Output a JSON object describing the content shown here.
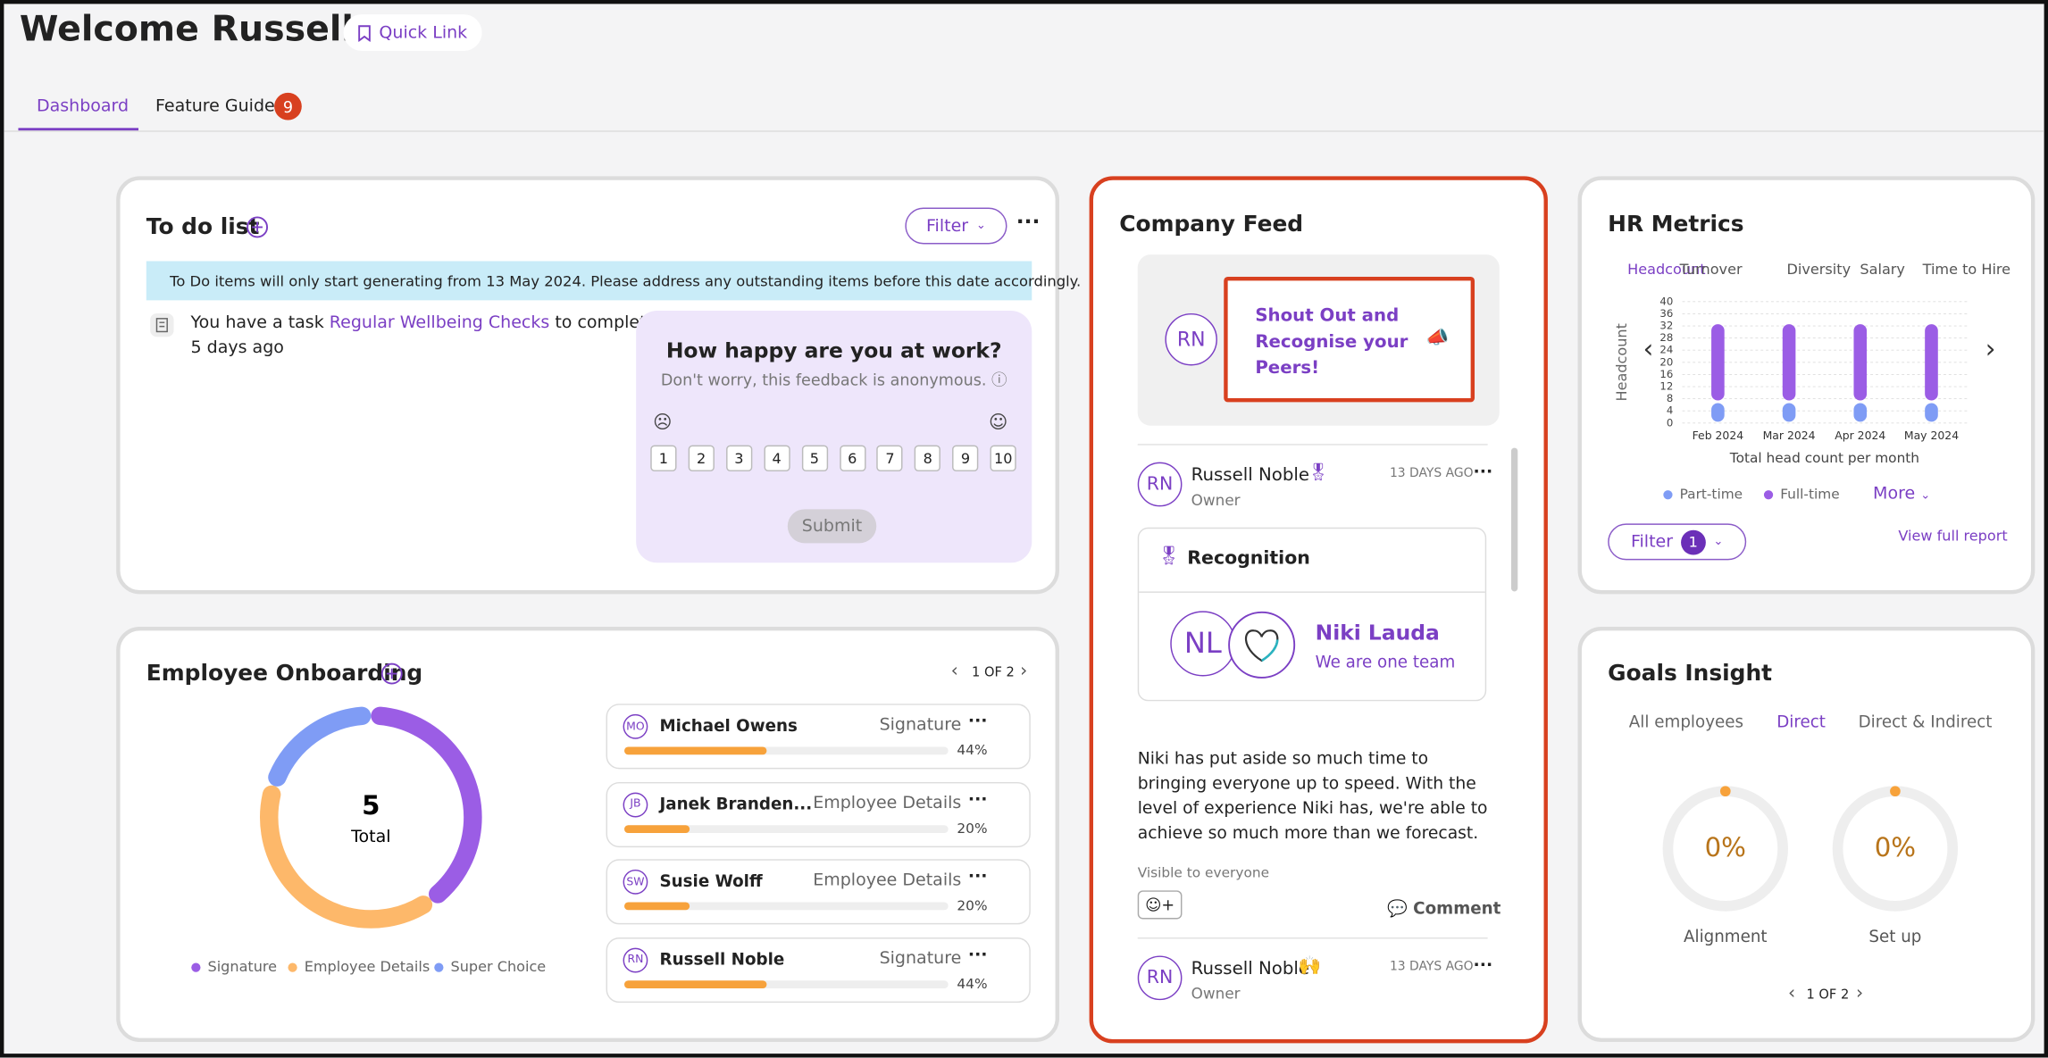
{
  "header": {
    "title": "Welcome Russell",
    "quick_link": "Quick Link",
    "tabs": [
      "Dashboard",
      "Feature Guides"
    ],
    "feature_guides_badge": 9
  },
  "todo": {
    "title": "To do list",
    "filter": "Filter",
    "notice": "To Do items will only start generating from 13 May 2024. Please address any outstanding items before this date accordingly.",
    "task_prefix": "You have a task",
    "task_link": "Regular Wellbeing Checks",
    "task_suffix": "to complete",
    "task_time": "5 days ago",
    "survey": {
      "question": "How happy are you at work?",
      "note": "Don't worry, this feedback is anonymous.",
      "scale": [
        1,
        2,
        3,
        4,
        5,
        6,
        7,
        8,
        9,
        10
      ],
      "submit": "Submit"
    }
  },
  "onboarding": {
    "title": "Employee Onboarding",
    "page": "1 OF 2",
    "donut": {
      "type": "donut",
      "total": 5,
      "total_label": "Total",
      "categories": [
        "Signature",
        "Employee Details",
        "Super Choice"
      ],
      "values": [
        2,
        2,
        1
      ],
      "colors": [
        "#9b5de5",
        "#fdb86a",
        "#7f9cf5"
      ]
    },
    "rows": [
      {
        "initials": "MO",
        "name": "Michael Owens",
        "step": "Signature",
        "percent": 44,
        "percent_label": "44%"
      },
      {
        "initials": "JB",
        "name": "Janek Branden...",
        "step": "Employee Details",
        "percent": 20,
        "percent_label": "20%"
      },
      {
        "initials": "SW",
        "name": "Susie Wolff",
        "step": "Employee Details",
        "percent": 20,
        "percent_label": "20%"
      },
      {
        "initials": "RN",
        "name": "Russell Noble",
        "step": "Signature",
        "percent": 44,
        "percent_label": "44%"
      }
    ]
  },
  "feed": {
    "title": "Company Feed",
    "shoutout_initials": "RN",
    "shoutout": "Shout Out and Recognise your Peers!",
    "posts": [
      {
        "initials": "RN",
        "author": "Russell Noble",
        "role": "Owner",
        "time": "13 DAYS AGO",
        "card_title": "Recognition",
        "recipient_initials": "NL",
        "recipient": "Niki Lauda",
        "badge": "We are one team",
        "body": "Niki has put aside so much time to bringing everyone up to speed. With the level of expe­rience Niki has, we're able to achieve so much more than we forecast.",
        "visibility": "Visible to everyone",
        "comment": "Comment"
      },
      {
        "initials": "RN",
        "author": "Russell Noble",
        "role": "Owner",
        "time": "13 DAYS AGO"
      }
    ]
  },
  "hr": {
    "title": "HR Metrics",
    "tabs": [
      "Headcount",
      "Turnover",
      "Diversity",
      "Salary",
      "Time to Hire"
    ],
    "chart_data": {
      "type": "bar",
      "y_label": "Headcount",
      "x_label": "Total head count per month",
      "categories": [
        "Feb 2024",
        "Mar 2024",
        "Apr 2024",
        "May 2024"
      ],
      "series": [
        {
          "name": "Part-time",
          "color": "#7f9cf5",
          "values": [
            7,
            7,
            7,
            7
          ]
        },
        {
          "name": "Full-time",
          "color": "#9b5de5",
          "values": [
            26,
            26,
            26,
            26
          ]
        }
      ],
      "ylim": [
        0,
        40
      ],
      "yticks": [
        0,
        4,
        8,
        12,
        16,
        20,
        24,
        28,
        32,
        36,
        40
      ],
      "grid": true
    },
    "more": "More",
    "filter": "Filter",
    "filter_badge": 1,
    "report": "View full report"
  },
  "goals": {
    "title": "Goals Insight",
    "tabs": [
      "All employees",
      "Direct",
      "Direct & Indirect"
    ],
    "gauges": [
      {
        "label": "Alignment",
        "value": 0,
        "value_label": "0%"
      },
      {
        "label": "Set up",
        "value": 0,
        "value_label": "0%"
      }
    ],
    "page": "1 OF 2"
  }
}
